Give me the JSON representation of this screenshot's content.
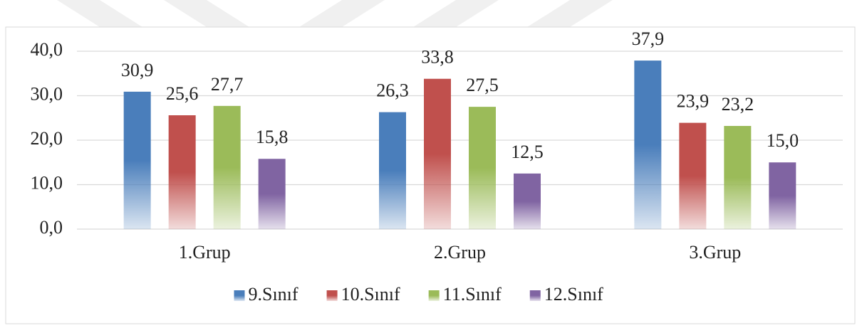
{
  "chart_data": {
    "type": "bar",
    "categories": [
      "1.Grup",
      "2.Grup",
      "3.Grup"
    ],
    "series": [
      {
        "name": "9.Sınıf",
        "color": "#4a7ebb",
        "values": [
          30.9,
          26.3,
          37.9
        ],
        "value_labels": [
          "30,9",
          "26,3",
          "37,9"
        ]
      },
      {
        "name": "10.Sınıf",
        "color": "#c0504d",
        "values": [
          25.6,
          33.8,
          23.9
        ],
        "value_labels": [
          "25,6",
          "33,8",
          "23,9"
        ]
      },
      {
        "name": "11.Sınıf",
        "color": "#9bbb59",
        "values": [
          27.7,
          27.5,
          23.2
        ],
        "value_labels": [
          "27,7",
          "27,5",
          "23,2"
        ]
      },
      {
        "name": "12.Sınıf",
        "color": "#8064a2",
        "values": [
          15.8,
          12.5,
          15.0
        ],
        "value_labels": [
          "15,8",
          "12,5",
          "15,0"
        ]
      }
    ],
    "ylim": [
      0,
      40
    ],
    "yticks": [
      {
        "value": 0,
        "label": "0,0"
      },
      {
        "value": 10,
        "label": "10,0"
      },
      {
        "value": 20,
        "label": "20,0"
      },
      {
        "value": 30,
        "label": "30,0"
      },
      {
        "value": 40,
        "label": "40,0"
      }
    ],
    "grid": true,
    "legend": "bottom"
  }
}
